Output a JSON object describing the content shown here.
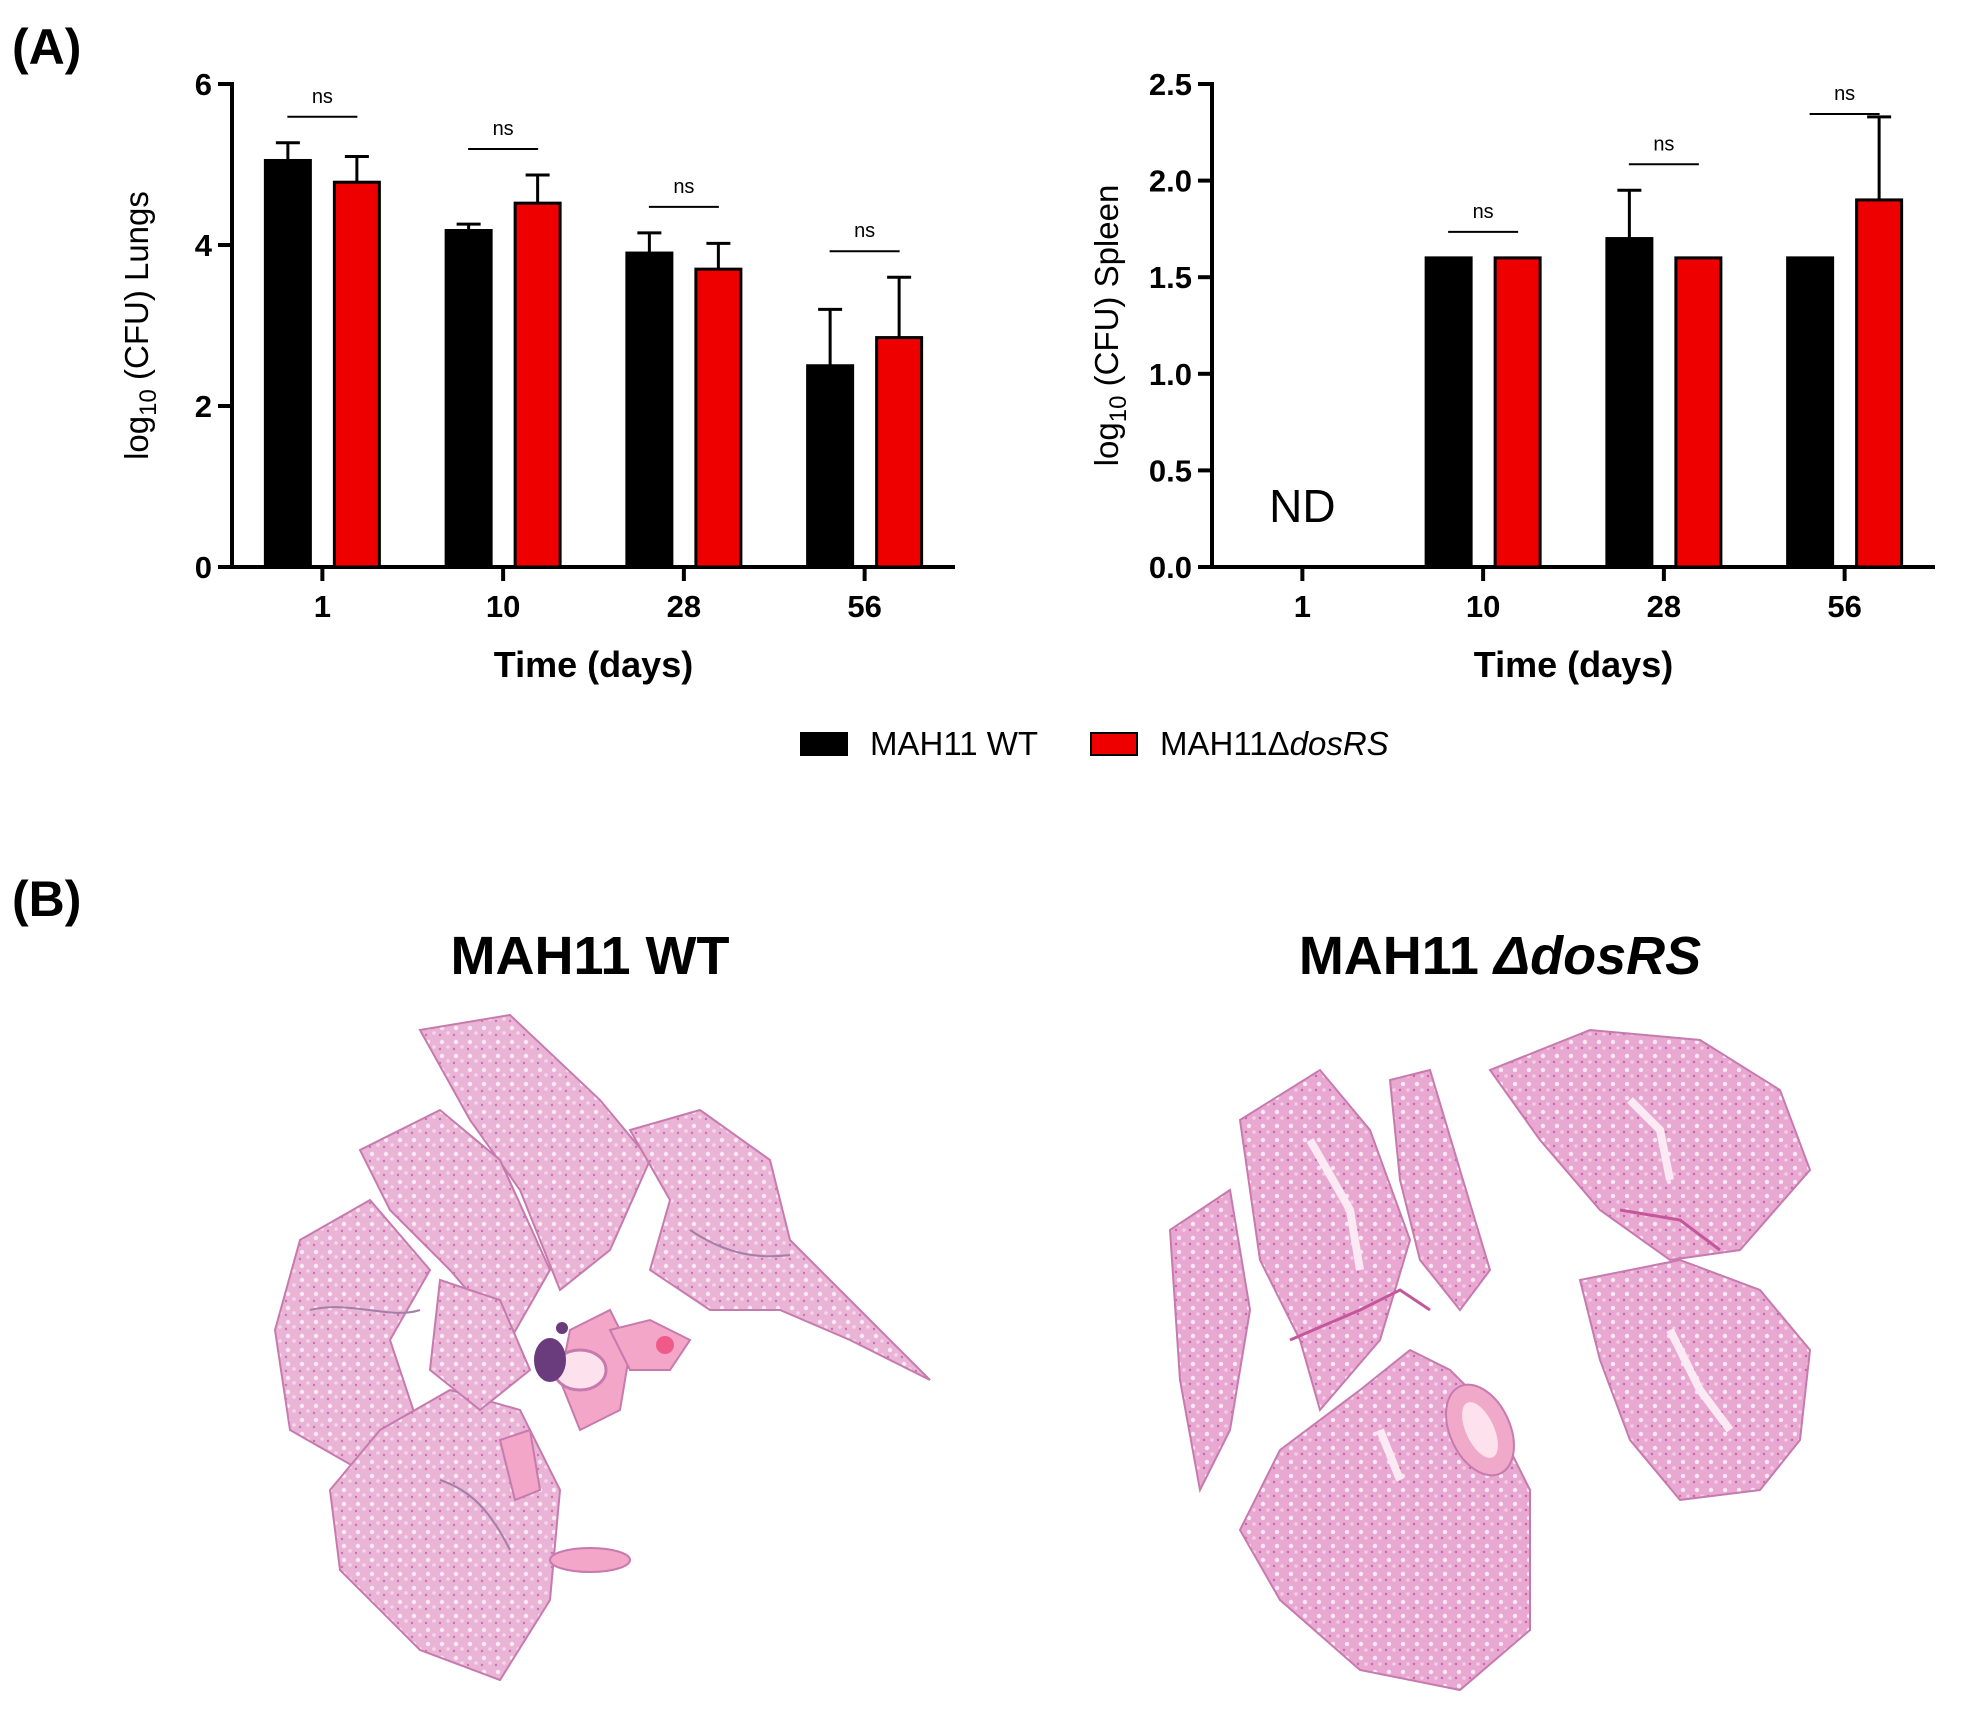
{
  "panel_labels": {
    "a": "(A)",
    "b": "(B)"
  },
  "colors": {
    "wt": "#000000",
    "mutant": "#ee0000",
    "tissue": "#e8a6cf",
    "tissue_dark": "#d77bb6"
  },
  "legend": [
    {
      "label": "MAH11 WT",
      "color": "#000000"
    },
    {
      "label_prefix": "MAH11Δ",
      "label_italic": "dosRS",
      "color": "#ee0000"
    }
  ],
  "chart_data": [
    {
      "type": "bar",
      "xlabel": "Time (days)",
      "ylabel_prefix": "log",
      "ylabel_sub": "10",
      "ylabel_suffix": " (CFU) Lungs",
      "ylim": [
        0,
        6
      ],
      "yticks": [
        "0",
        "2",
        "4",
        "6"
      ],
      "categories": [
        "1",
        "10",
        "28",
        "56"
      ],
      "series": [
        {
          "values": [
            5.05,
            4.18,
            3.9,
            2.5
          ],
          "errors": [
            0.22,
            0.08,
            0.25,
            0.7
          ]
        },
        {
          "values": [
            4.78,
            4.52,
            3.7,
            2.85
          ],
          "errors": [
            0.32,
            0.35,
            0.32,
            0.75
          ]
        }
      ],
      "significance": [
        "ns",
        "ns",
        "ns",
        "ns"
      ],
      "annotations": [],
      "grid": false
    },
    {
      "type": "bar",
      "xlabel": "Time (days)",
      "ylabel_prefix": "log",
      "ylabel_sub": "10",
      "ylabel_suffix": " (CFU) Spleen",
      "ylim": [
        0,
        2.5
      ],
      "yticks": [
        "0.0",
        "0.5",
        "1.0",
        "1.5",
        "2.0",
        "2.5"
      ],
      "categories": [
        "1",
        "10",
        "28",
        "56"
      ],
      "series": [
        {
          "values": [
            null,
            1.6,
            1.7,
            1.6
          ],
          "errors": [
            0,
            0,
            0.25,
            0
          ]
        },
        {
          "values": [
            null,
            1.6,
            1.6,
            1.9
          ],
          "errors": [
            0,
            0,
            0,
            0.43
          ]
        }
      ],
      "significance": [
        "",
        "ns",
        "ns",
        "ns"
      ],
      "annotations": [
        "ND"
      ],
      "grid": false
    }
  ],
  "histology": {
    "left_title": "MAH11 WT",
    "right_title_prefix": "MAH11 ",
    "right_title_italic": "ΔdosRS"
  }
}
